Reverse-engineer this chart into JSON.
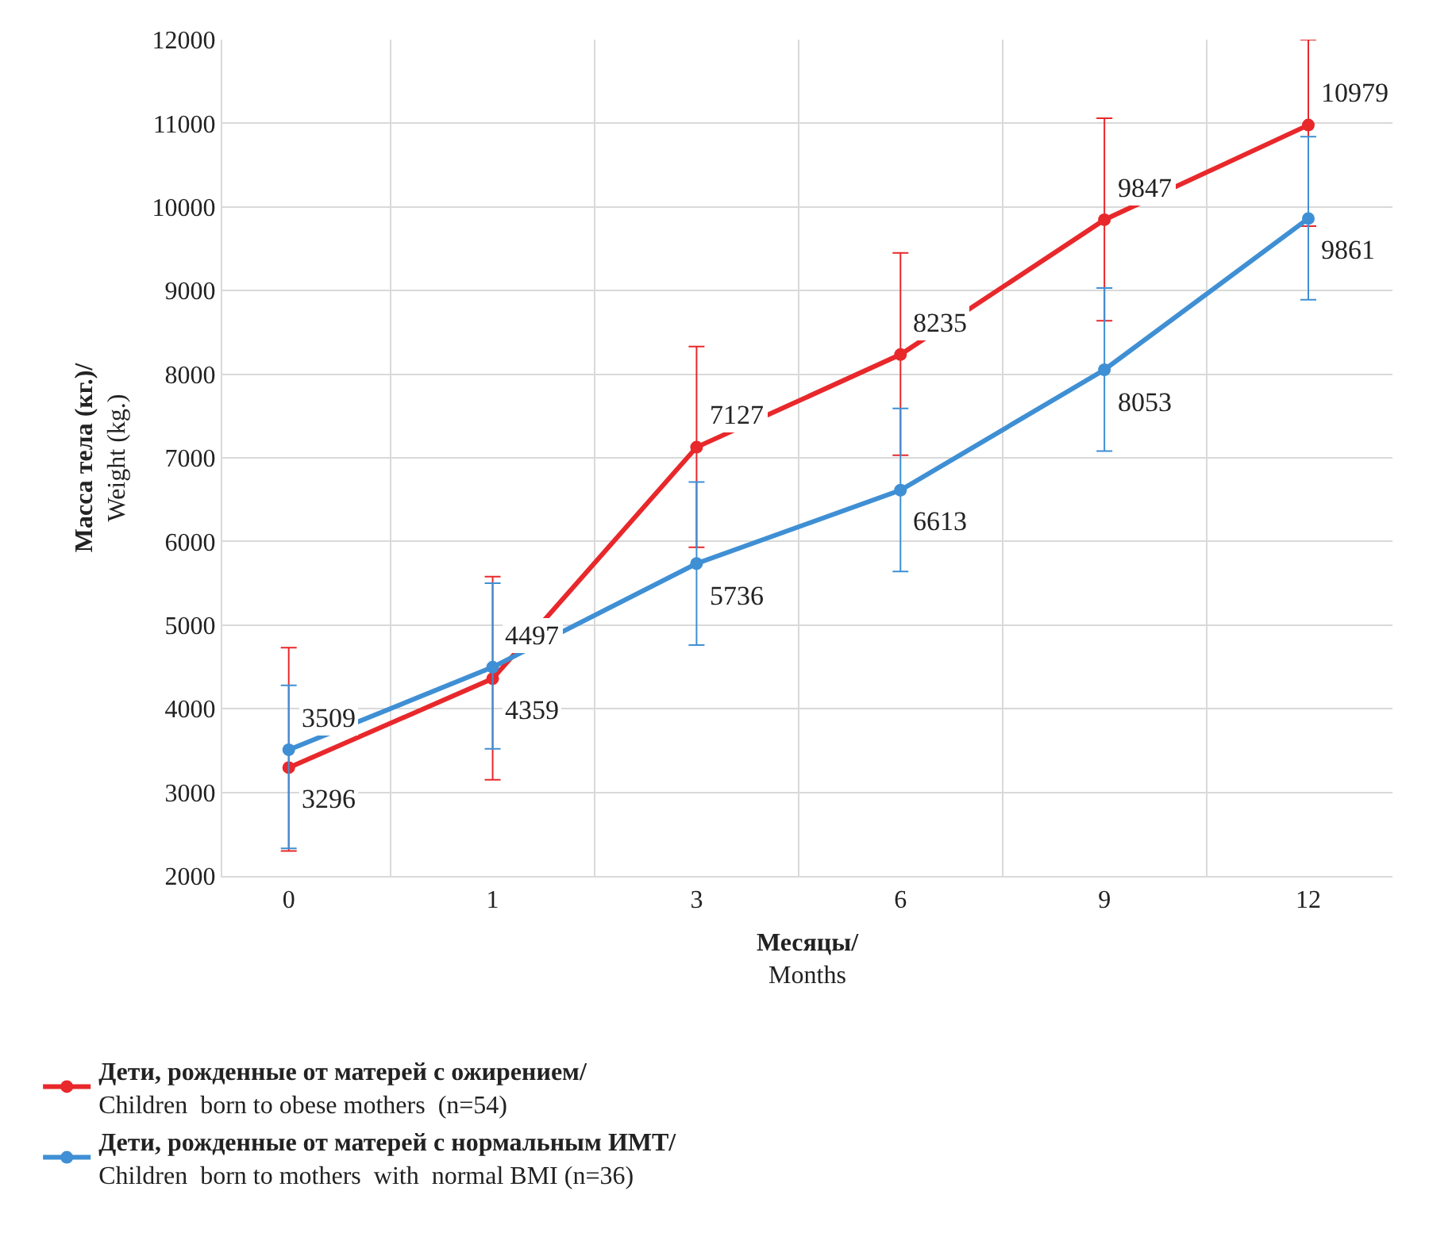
{
  "chart_data": {
    "type": "line",
    "xlabel": "Месяцы/\nMonths",
    "ylabel": "Масса тела (кг.)/\nWeight (kg.)",
    "categories": [
      "0",
      "1",
      "3",
      "6",
      "9",
      "12"
    ],
    "ylim": [
      2000,
      12000
    ],
    "yticks": [
      2000,
      3000,
      4000,
      5000,
      6000,
      7000,
      8000,
      9000,
      10000,
      11000,
      12000
    ],
    "grid": true,
    "legend": "bottom left",
    "marker": "circle",
    "line_style": "solid",
    "series": [
      {
        "name": "Дети, рожденные от матерей с ожирением/\nChildren  born to obese mothers  (n=54)",
        "color": "#e8282b",
        "values": [
          3296,
          4359,
          7127,
          8235,
          9847,
          10979
        ],
        "value_labels": [
          "3296",
          "4359",
          "7127",
          "8235",
          "9847",
          "10979"
        ],
        "errors": [
          [
            2300,
            4730
          ],
          [
            3150,
            5580
          ],
          [
            5930,
            8330
          ],
          [
            7030,
            9450
          ],
          [
            8640,
            11060
          ],
          [
            9770,
            12000
          ]
        ]
      },
      {
        "name": "Дети, рожденные от матерей с нормальным ИМТ/\nChildren  born to mothers  with  normal BMI (n=36)",
        "color": "#3f8fd4",
        "values": [
          3509,
          4497,
          5736,
          6613,
          8053,
          9861
        ],
        "value_labels": [
          "3509",
          "4497",
          "5736",
          "6613",
          "8053",
          "9861"
        ],
        "errors": [
          [
            2330,
            4280
          ],
          [
            3520,
            5500
          ],
          [
            4760,
            6710
          ],
          [
            5640,
            7590
          ],
          [
            7080,
            9030
          ],
          [
            8890,
            10840
          ]
        ]
      }
    ]
  }
}
